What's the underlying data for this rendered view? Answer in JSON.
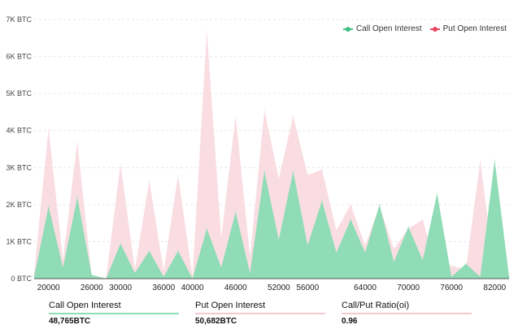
{
  "legend": [
    {
      "label": "Call Open Interest",
      "color": "#3fbf85"
    },
    {
      "label": "Put  Open Interest",
      "color": "#e8475f"
    }
  ],
  "summary": [
    {
      "label": "Call Open Interest",
      "value": "48,765",
      "unit": "BTC",
      "color": "#8fdcb6"
    },
    {
      "label": "Put Open Interest",
      "value": "50,682",
      "unit": "BTC",
      "color": "#f6c8d0"
    },
    {
      "label": "Call/Put Ratio(oi)",
      "value": "0.96",
      "unit": "",
      "color": "#f6c8d0"
    }
  ],
  "chart_data": {
    "type": "area",
    "xlim": [
      18000,
      84000
    ],
    "ylim": [
      0,
      7000
    ],
    "y_ticks": [
      0,
      1000,
      2000,
      3000,
      4000,
      5000,
      6000,
      7000
    ],
    "y_tick_labels": [
      "0 BTC",
      "1K BTC",
      "2K BTC",
      "3K BTC",
      "4K BTC",
      "5K BTC",
      "6K BTC",
      "7K BTC"
    ],
    "x_ticks": [
      20000,
      26000,
      30000,
      36000,
      40000,
      46000,
      52000,
      56000,
      64000,
      70000,
      76000,
      82000
    ],
    "x_tick_labels": [
      "20000",
      "26000",
      "30000",
      "36000",
      "40000",
      "46000",
      "52000",
      "56000",
      "64000",
      "70000",
      "76000",
      "82000"
    ],
    "grid": true,
    "legend_position": "top-right",
    "series": [
      {
        "name": "Put  Open Interest",
        "color": "#f9dde2",
        "x": [
          18000,
          20000,
          22000,
          24000,
          26000,
          28000,
          30000,
          32000,
          34000,
          36000,
          38000,
          40000,
          42000,
          44000,
          46000,
          48000,
          50000,
          52000,
          54000,
          56000,
          58000,
          60000,
          62000,
          64000,
          66000,
          68000,
          70000,
          72000,
          74000,
          76000,
          78000,
          80000,
          82000,
          84000
        ],
        "y": [
          150,
          4050,
          500,
          3700,
          50,
          0,
          3100,
          250,
          2650,
          200,
          2800,
          50,
          6700,
          1100,
          4400,
          600,
          4550,
          2700,
          4400,
          2800,
          2950,
          1300,
          2000,
          900,
          1950,
          800,
          1350,
          1600,
          200,
          350,
          250,
          3200,
          100,
          50
        ]
      },
      {
        "name": "Call Open Interest",
        "color": "#8fdcb6",
        "x": [
          18000,
          20000,
          22000,
          24000,
          26000,
          28000,
          30000,
          32000,
          34000,
          36000,
          38000,
          40000,
          42000,
          44000,
          46000,
          48000,
          50000,
          52000,
          54000,
          56000,
          58000,
          60000,
          62000,
          64000,
          66000,
          68000,
          70000,
          72000,
          74000,
          76000,
          78000,
          80000,
          82000,
          84000
        ],
        "y": [
          50,
          1950,
          300,
          2200,
          100,
          0,
          950,
          150,
          750,
          50,
          750,
          0,
          1350,
          300,
          1800,
          150,
          2900,
          1050,
          2900,
          900,
          2100,
          700,
          1600,
          700,
          2000,
          450,
          1400,
          500,
          2300,
          50,
          400,
          50,
          3200,
          50
        ]
      }
    ]
  }
}
